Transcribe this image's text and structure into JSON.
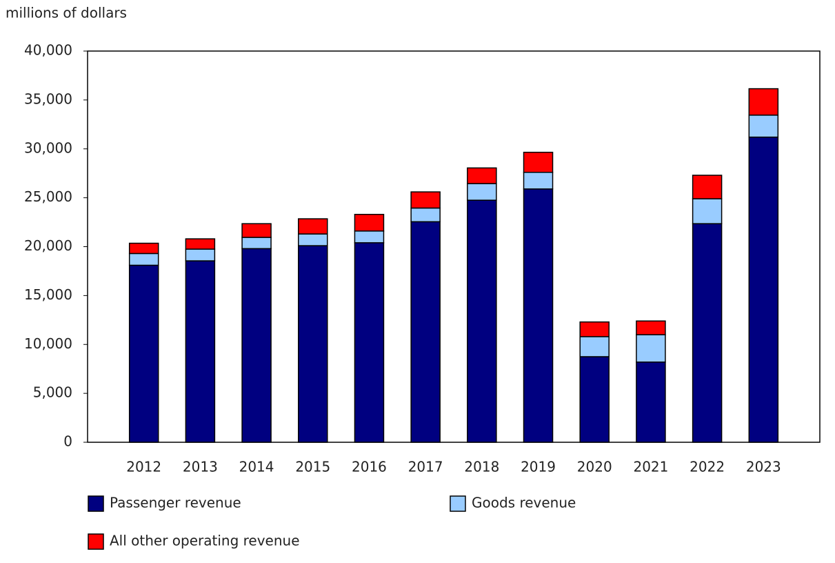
{
  "chart_data": {
    "type": "bar",
    "stacked": true,
    "y_label": "millions of dollars",
    "categories": [
      "2012",
      "2013",
      "2014",
      "2015",
      "2016",
      "2017",
      "2018",
      "2019",
      "2020",
      "2021",
      "2022",
      "2023"
    ],
    "series": [
      {
        "name": "Passenger revenue",
        "color": "#000080",
        "values": [
          18100,
          18550,
          19800,
          20100,
          20400,
          22550,
          24750,
          25900,
          8750,
          8200,
          22350,
          31200
        ]
      },
      {
        "name": "Goods revenue",
        "color": "#99ccff",
        "values": [
          1200,
          1200,
          1150,
          1200,
          1200,
          1400,
          1700,
          1700,
          2050,
          2800,
          2550,
          2250
        ]
      },
      {
        "name": "All other operating revenue",
        "color": "#ff0000",
        "values": [
          1050,
          1050,
          1400,
          1550,
          1700,
          1650,
          1600,
          2050,
          1500,
          1400,
          2400,
          2700
        ]
      }
    ],
    "ylim": [
      0,
      40000
    ],
    "yticks": [
      0,
      {
        "value": 5000,
        "label": "5,000"
      },
      {
        "value": 10000,
        "label": "10,000"
      },
      {
        "value": 15000,
        "label": "15,000"
      },
      {
        "value": 20000,
        "label": "20,000"
      },
      {
        "value": 25000,
        "label": "25,000"
      },
      {
        "value": 30000,
        "label": "30,000"
      },
      {
        "value": 35000,
        "label": "35,000"
      },
      {
        "value": 40000,
        "label": "40,000"
      }
    ],
    "grid": false
  }
}
